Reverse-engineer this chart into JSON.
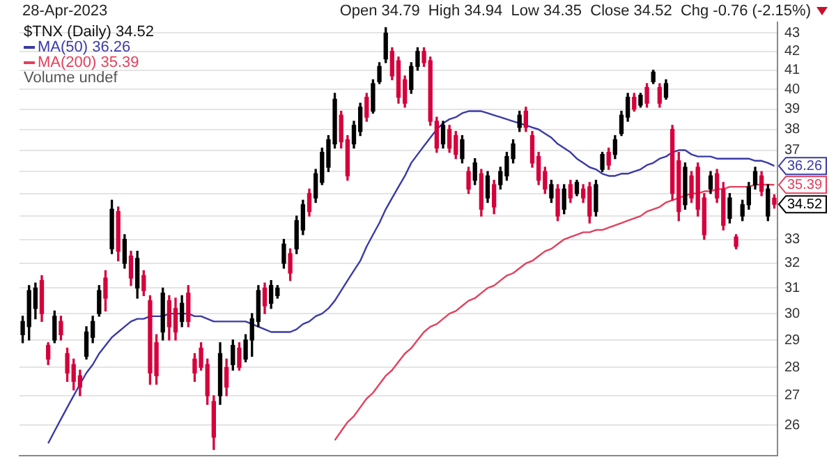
{
  "chart_data": {
    "type": "candlestick",
    "title": "28-Apr-2023",
    "subtitle": "Open 34.79  High 34.94  Low 34.35  Close 34.52  Chg -0.76 (-2.15%)",
    "legend_title": "$TNX (Daily) 34.52",
    "legend": "top left",
    "grid": "y",
    "log": "y",
    "categories": [
      null,
      null,
      null,
      null,
      null,
      null,
      null,
      null,
      null,
      null,
      null,
      null,
      null,
      null,
      null,
      null,
      null,
      null,
      null,
      null,
      null,
      null,
      null,
      null,
      null,
      null,
      null,
      null,
      null,
      null,
      null,
      null,
      null,
      null,
      null,
      null,
      null,
      null,
      null,
      null,
      null,
      null,
      null,
      null,
      null,
      null,
      null,
      null,
      null,
      null,
      null,
      null,
      null,
      null,
      null,
      null,
      null,
      null,
      null,
      null,
      null,
      null,
      null,
      null,
      null,
      null,
      null,
      null,
      null,
      null,
      null,
      null,
      null,
      null,
      null,
      null,
      null,
      null,
      null,
      null,
      null,
      null,
      null,
      null,
      null,
      null,
      null,
      null,
      null,
      null,
      null,
      null,
      null,
      null,
      null,
      null,
      null,
      null,
      null,
      null,
      null,
      null,
      null,
      null,
      null,
      null,
      null,
      null,
      null,
      null,
      null,
      null,
      null,
      null,
      null,
      null,
      null,
      null,
      null
    ],
    "ohlc": [
      [
        29.2,
        29.9,
        28.9,
        29.7
      ],
      [
        29.5,
        31.1,
        29.0,
        30.9
      ],
      [
        30.2,
        31.2,
        29.8,
        31.0
      ],
      [
        31.3,
        31.5,
        29.7,
        30.0
      ],
      [
        28.8,
        28.9,
        28.1,
        28.3
      ],
      [
        29.0,
        30.1,
        28.9,
        29.9
      ],
      [
        29.7,
        29.9,
        29.0,
        29.2
      ],
      [
        28.5,
        28.7,
        27.5,
        27.8
      ],
      [
        28.1,
        28.3,
        27.2,
        27.5
      ],
      [
        27.7,
        27.9,
        27.0,
        27.3
      ],
      [
        28.4,
        29.5,
        28.3,
        29.3
      ],
      [
        29.1,
        29.9,
        28.9,
        29.7
      ],
      [
        30.0,
        31.1,
        29.9,
        30.9
      ],
      [
        31.4,
        31.7,
        30.1,
        30.6
      ],
      [
        32.6,
        34.7,
        32.4,
        34.3
      ],
      [
        34.2,
        34.4,
        32.1,
        32.5
      ],
      [
        32.0,
        33.2,
        31.8,
        33.0
      ],
      [
        32.3,
        32.5,
        31.1,
        31.4
      ],
      [
        31.0,
        32.5,
        30.6,
        32.2
      ],
      [
        31.5,
        31.7,
        30.7,
        30.9
      ],
      [
        30.5,
        30.7,
        27.4,
        27.8
      ],
      [
        28.9,
        29.2,
        27.4,
        27.7
      ],
      [
        29.3,
        31.0,
        29.0,
        30.8
      ],
      [
        30.5,
        30.7,
        29.0,
        29.5
      ],
      [
        30.2,
        30.6,
        29.0,
        29.3
      ],
      [
        29.7,
        30.7,
        29.5,
        30.4
      ],
      [
        30.8,
        31.1,
        29.5,
        29.7
      ],
      [
        28.3,
        28.5,
        27.5,
        27.8
      ],
      [
        28.7,
        28.9,
        27.9,
        28.0
      ],
      [
        28.1,
        28.3,
        26.7,
        27.0
      ],
      [
        26.8,
        27.0,
        25.2,
        25.6
      ],
      [
        27.0,
        28.9,
        26.7,
        28.5
      ],
      [
        28.0,
        28.3,
        27.0,
        27.3
      ],
      [
        28.1,
        29.0,
        27.9,
        28.8
      ],
      [
        28.7,
        28.9,
        27.9,
        28.0
      ],
      [
        28.3,
        29.2,
        28.2,
        29.0
      ],
      [
        29.0,
        30.0,
        28.4,
        29.8
      ],
      [
        29.7,
        31.1,
        29.5,
        30.9
      ],
      [
        31.0,
        31.2,
        30.0,
        30.3
      ],
      [
        30.4,
        31.3,
        30.2,
        31.1
      ],
      [
        30.7,
        31.1,
        30.6,
        31.0
      ],
      [
        32.0,
        33.0,
        31.8,
        32.8
      ],
      [
        32.4,
        32.6,
        31.3,
        31.6
      ],
      [
        32.6,
        34.0,
        32.4,
        33.8
      ],
      [
        33.4,
        34.7,
        33.2,
        34.5
      ],
      [
        35.0,
        35.2,
        34.0,
        34.2
      ],
      [
        34.8,
        36.1,
        34.6,
        35.9
      ],
      [
        35.5,
        37.1,
        35.4,
        36.9
      ],
      [
        36.2,
        37.7,
        36.0,
        37.5
      ],
      [
        37.3,
        39.8,
        37.1,
        39.5
      ],
      [
        38.7,
        38.9,
        37.1,
        37.4
      ],
      [
        37.5,
        37.7,
        35.6,
        35.8
      ],
      [
        37.3,
        38.4,
        37.1,
        38.2
      ],
      [
        37.9,
        39.3,
        37.7,
        39.1
      ],
      [
        39.6,
        39.8,
        38.4,
        38.6
      ],
      [
        38.9,
        40.5,
        38.8,
        40.3
      ],
      [
        40.4,
        41.4,
        40.3,
        41.2
      ],
      [
        41.6,
        43.3,
        41.4,
        43.0
      ],
      [
        42.0,
        42.2,
        40.5,
        40.7
      ],
      [
        41.5,
        41.7,
        39.3,
        39.6
      ],
      [
        40.5,
        40.7,
        39.1,
        39.3
      ],
      [
        40.0,
        41.4,
        39.8,
        41.2
      ],
      [
        41.2,
        42.2,
        41.0,
        42.0
      ],
      [
        42.0,
        42.2,
        41.2,
        41.4
      ],
      [
        41.5,
        41.7,
        38.2,
        38.4
      ],
      [
        38.4,
        38.6,
        36.9,
        37.1
      ],
      [
        37.3,
        38.4,
        37.1,
        38.2
      ],
      [
        38.0,
        38.2,
        36.9,
        37.1
      ],
      [
        37.7,
        37.9,
        36.6,
        36.8
      ],
      [
        36.6,
        37.7,
        36.4,
        37.5
      ],
      [
        36.0,
        36.2,
        35.0,
        35.2
      ],
      [
        35.6,
        36.6,
        35.4,
        36.4
      ],
      [
        35.9,
        36.1,
        34.0,
        34.3
      ],
      [
        34.8,
        36.0,
        34.6,
        35.8
      ],
      [
        35.4,
        35.6,
        34.1,
        34.4
      ],
      [
        35.4,
        36.2,
        35.2,
        36.0
      ],
      [
        35.8,
        36.9,
        35.6,
        36.7
      ],
      [
        36.6,
        37.5,
        36.4,
        37.3
      ],
      [
        38.1,
        38.9,
        37.9,
        38.7
      ],
      [
        38.9,
        39.1,
        37.9,
        38.1
      ],
      [
        37.7,
        37.9,
        36.2,
        36.4
      ],
      [
        36.7,
        36.9,
        35.4,
        35.6
      ],
      [
        36.0,
        36.2,
        35.0,
        35.2
      ],
      [
        34.8,
        35.6,
        34.6,
        35.4
      ],
      [
        35.2,
        35.4,
        33.8,
        34.0
      ],
      [
        34.3,
        35.4,
        34.1,
        35.2
      ],
      [
        35.4,
        35.6,
        34.6,
        34.8
      ],
      [
        35.0,
        35.6,
        34.9,
        35.5
      ],
      [
        35.2,
        35.4,
        34.6,
        34.8
      ],
      [
        35.3,
        35.5,
        33.7,
        34.0
      ],
      [
        34.2,
        35.6,
        34.0,
        35.4
      ],
      [
        36.1,
        36.9,
        36.0,
        36.8
      ],
      [
        36.9,
        37.1,
        36.1,
        36.3
      ],
      [
        36.8,
        37.7,
        36.6,
        37.5
      ],
      [
        37.8,
        38.9,
        37.7,
        38.7
      ],
      [
        38.6,
        39.8,
        38.4,
        39.6
      ],
      [
        39.6,
        39.8,
        38.9,
        39.0
      ],
      [
        39.2,
        39.8,
        39.1,
        39.7
      ],
      [
        40.1,
        40.3,
        39.1,
        39.3
      ],
      [
        40.4,
        41.0,
        40.3,
        40.9
      ],
      [
        40.1,
        40.3,
        39.1,
        39.3
      ],
      [
        39.6,
        40.5,
        39.5,
        40.3
      ],
      [
        38.0,
        38.2,
        34.7,
        35.0
      ],
      [
        36.5,
        36.9,
        33.8,
        34.2
      ],
      [
        34.5,
        36.4,
        34.3,
        36.2
      ],
      [
        35.8,
        36.0,
        34.6,
        34.8
      ],
      [
        36.2,
        36.4,
        34.0,
        34.3
      ],
      [
        34.8,
        35.0,
        33.0,
        33.2
      ],
      [
        35.2,
        36.0,
        35.0,
        35.8
      ],
      [
        35.9,
        36.1,
        34.6,
        34.8
      ],
      [
        35.2,
        35.5,
        33.4,
        33.6
      ],
      [
        33.9,
        35.0,
        33.7,
        34.8
      ],
      [
        33.1,
        33.2,
        32.6,
        32.7
      ],
      [
        34.0,
        34.7,
        33.8,
        34.5
      ],
      [
        34.5,
        35.5,
        34.3,
        35.3
      ],
      [
        35.4,
        36.2,
        35.2,
        36.0
      ],
      [
        35.8,
        36.0,
        34.9,
        35.1
      ],
      [
        34.0,
        35.4,
        33.8,
        35.2
      ],
      [
        34.79,
        34.94,
        34.35,
        34.52
      ]
    ],
    "colors": [
      "#000000",
      "#000000",
      "#000000",
      "#d6003c",
      "#d6003c",
      "#000000",
      "#d6003c",
      "#d6003c",
      "#d6003c",
      "#d6003c",
      "#000000",
      "#000000",
      "#000000",
      "#d6003c",
      "#000000",
      "#d6003c",
      "#000000",
      "#d6003c",
      "#000000",
      "#d6003c",
      "#d6003c",
      "#d6003c",
      "#000000",
      "#d6003c",
      "#d6003c",
      "#000000",
      "#d6003c",
      "#d6003c",
      "#d6003c",
      "#d6003c",
      "#d6003c",
      "#000000",
      "#d6003c",
      "#000000",
      "#d6003c",
      "#000000",
      "#000000",
      "#000000",
      "#d6003c",
      "#000000",
      "#000000",
      "#000000",
      "#d6003c",
      "#000000",
      "#000000",
      "#d6003c",
      "#000000",
      "#000000",
      "#000000",
      "#000000",
      "#d6003c",
      "#d6003c",
      "#000000",
      "#000000",
      "#d6003c",
      "#000000",
      "#000000",
      "#000000",
      "#d6003c",
      "#d6003c",
      "#d6003c",
      "#000000",
      "#000000",
      "#d6003c",
      "#d6003c",
      "#d6003c",
      "#000000",
      "#d6003c",
      "#d6003c",
      "#000000",
      "#d6003c",
      "#000000",
      "#d6003c",
      "#000000",
      "#d6003c",
      "#000000",
      "#000000",
      "#000000",
      "#000000",
      "#d6003c",
      "#d6003c",
      "#d6003c",
      "#d6003c",
      "#000000",
      "#d6003c",
      "#000000",
      "#d6003c",
      "#000000",
      "#d6003c",
      "#d6003c",
      "#000000",
      "#000000",
      "#d6003c",
      "#000000",
      "#000000",
      "#000000",
      "#d6003c",
      "#000000",
      "#d6003c",
      "#000000",
      "#d6003c",
      "#000000",
      "#d6003c",
      "#d6003c",
      "#000000",
      "#d6003c",
      "#d6003c",
      "#d6003c",
      "#000000",
      "#d6003c",
      "#d6003c",
      "#000000",
      "#d6003c",
      "#000000",
      "#000000",
      "#000000",
      "#d6003c",
      "#000000",
      "#d6003c"
    ],
    "series": [
      {
        "type": "line",
        "name": "MA(50) 36.26",
        "color": "#3a3aa8",
        "values": [
          null,
          null,
          null,
          null,
          25.4,
          25.8,
          26.2,
          26.6,
          27.0,
          27.4,
          27.8,
          28.1,
          28.5,
          28.8,
          29.1,
          29.3,
          29.5,
          29.7,
          29.8,
          29.8,
          29.9,
          29.9,
          29.9,
          30.0,
          30.0,
          30.0,
          30.0,
          29.9,
          29.9,
          29.8,
          29.7,
          29.7,
          29.7,
          29.7,
          29.7,
          29.7,
          29.6,
          29.5,
          29.4,
          29.3,
          29.3,
          29.3,
          29.3,
          29.4,
          29.6,
          29.7,
          29.9,
          30.0,
          30.2,
          30.5,
          30.9,
          31.3,
          31.7,
          32.1,
          32.7,
          33.2,
          33.7,
          34.3,
          34.8,
          35.3,
          35.8,
          36.4,
          36.8,
          37.2,
          37.6,
          38.0,
          38.3,
          38.5,
          38.6,
          38.8,
          38.9,
          38.9,
          38.9,
          38.8,
          38.7,
          38.6,
          38.5,
          38.4,
          38.3,
          38.2,
          38.1,
          38.0,
          37.8,
          37.6,
          37.3,
          37.1,
          36.9,
          36.6,
          36.4,
          36.2,
          36.1,
          35.9,
          35.8,
          35.8,
          35.9,
          35.9,
          36.0,
          36.1,
          36.3,
          36.4,
          36.6,
          36.7,
          36.9,
          37.0,
          37.0,
          36.8,
          36.7,
          36.7,
          36.7,
          36.6,
          36.6,
          36.6,
          36.6,
          36.6,
          36.6,
          36.5,
          36.5,
          36.4,
          36.26
        ],
        "value_labels": [
          null,
          null,
          null,
          null,
          null,
          null,
          null,
          null,
          null,
          null,
          null,
          null,
          null,
          null,
          null,
          null,
          null,
          null,
          null,
          null,
          null,
          null,
          null,
          null,
          null,
          null,
          null,
          null,
          null,
          null,
          null,
          null,
          null,
          null,
          null,
          null,
          null,
          null,
          null,
          null,
          null,
          null,
          null,
          null,
          null,
          null,
          null,
          null,
          null,
          null,
          null,
          null,
          null,
          null,
          null,
          null,
          null,
          null,
          null,
          null,
          null,
          null,
          null,
          null,
          null,
          null,
          null,
          null,
          null,
          null,
          null,
          null,
          null,
          null,
          null,
          null,
          null,
          null,
          null,
          null,
          null,
          null,
          null,
          null,
          null,
          null,
          null,
          null,
          null,
          null,
          null,
          null,
          null,
          null,
          null,
          null,
          null,
          null,
          null,
          null,
          null,
          null,
          null,
          null,
          null,
          null,
          null,
          null,
          null,
          null,
          null,
          null,
          null,
          null,
          null,
          null,
          null,
          null,
          "36.26"
        ]
      },
      {
        "type": "line",
        "name": "MA(200) 35.39",
        "color": "#e3405c",
        "values": [
          null,
          null,
          null,
          null,
          null,
          null,
          null,
          null,
          null,
          null,
          null,
          null,
          null,
          null,
          null,
          null,
          null,
          null,
          null,
          null,
          null,
          null,
          null,
          null,
          null,
          null,
          null,
          null,
          null,
          null,
          null,
          null,
          null,
          null,
          null,
          null,
          null,
          null,
          null,
          null,
          null,
          null,
          null,
          null,
          null,
          null,
          null,
          null,
          null,
          25.5,
          25.8,
          26.1,
          26.3,
          26.6,
          26.9,
          27.1,
          27.4,
          27.7,
          27.9,
          28.2,
          28.5,
          28.7,
          29.0,
          29.3,
          29.5,
          29.6,
          29.8,
          30.0,
          30.1,
          30.3,
          30.5,
          30.6,
          30.8,
          31.0,
          31.1,
          31.3,
          31.5,
          31.6,
          31.8,
          32.0,
          32.1,
          32.3,
          32.5,
          32.6,
          32.8,
          33.0,
          33.1,
          33.2,
          33.3,
          33.3,
          33.4,
          33.4,
          33.5,
          33.6,
          33.7,
          33.8,
          33.9,
          34.0,
          34.2,
          34.3,
          34.4,
          34.6,
          34.7,
          34.8,
          34.9,
          35.0,
          35.0,
          35.1,
          35.1,
          35.2,
          35.2,
          35.3,
          35.3,
          35.3,
          35.3,
          35.4,
          35.4,
          35.4,
          35.39
        ],
        "value_labels": [
          null,
          null,
          null,
          null,
          null,
          null,
          null,
          null,
          null,
          null,
          null,
          null,
          null,
          null,
          null,
          null,
          null,
          null,
          null,
          null,
          null,
          null,
          null,
          null,
          null,
          null,
          null,
          null,
          null,
          null,
          null,
          null,
          null,
          null,
          null,
          null,
          null,
          null,
          null,
          null,
          null,
          null,
          null,
          null,
          null,
          null,
          null,
          null,
          null,
          null,
          null,
          null,
          null,
          null,
          null,
          null,
          null,
          null,
          null,
          null,
          null,
          null,
          null,
          null,
          null,
          null,
          null,
          null,
          null,
          null,
          null,
          null,
          null,
          null,
          null,
          null,
          null,
          null,
          null,
          null,
          null,
          null,
          null,
          null,
          null,
          null,
          null,
          null,
          null,
          null,
          null,
          null,
          null,
          null,
          null,
          null,
          null,
          null,
          null,
          null,
          null,
          null,
          null,
          null,
          null,
          null,
          null,
          null,
          null,
          null,
          null,
          null,
          null,
          null,
          null,
          null,
          null,
          null,
          "35.39"
        ]
      }
    ],
    "ylim": [
      25,
      43.6
    ],
    "yticks": [
      26,
      27,
      28,
      29,
      30,
      31,
      32,
      33,
      {
        "value": 34,
        "label": null
      },
      {
        "value": 35,
        "label": null
      },
      {
        "value": 36,
        "label": null
      },
      37,
      38,
      39,
      40,
      41,
      42,
      43
    ],
    "value_labels": [
      null,
      null,
      null,
      null,
      null,
      null,
      null,
      null,
      null,
      null,
      null,
      null,
      null,
      null,
      null,
      null,
      null,
      null,
      null,
      null,
      null,
      null,
      null,
      null,
      null,
      null,
      null,
      null,
      null,
      null,
      null,
      null,
      null,
      null,
      null,
      null,
      null,
      null,
      null,
      null,
      null,
      null,
      null,
      null,
      null,
      null,
      null,
      null,
      null,
      null,
      null,
      null,
      null,
      null,
      null,
      null,
      null,
      null,
      null,
      null,
      null,
      null,
      null,
      null,
      null,
      null,
      null,
      null,
      null,
      null,
      null,
      null,
      null,
      null,
      null,
      null,
      null,
      null,
      null,
      null,
      null,
      null,
      null,
      null,
      null,
      null,
      null,
      null,
      null,
      null,
      null,
      null,
      null,
      null,
      null,
      null,
      null,
      null,
      null,
      null,
      null,
      null,
      null,
      null,
      null,
      null,
      null,
      null,
      null,
      null,
      null,
      null,
      null,
      null,
      null,
      null,
      null,
      null,
      "34.52"
    ],
    "annotations": [
      "Volume undef"
    ]
  }
}
